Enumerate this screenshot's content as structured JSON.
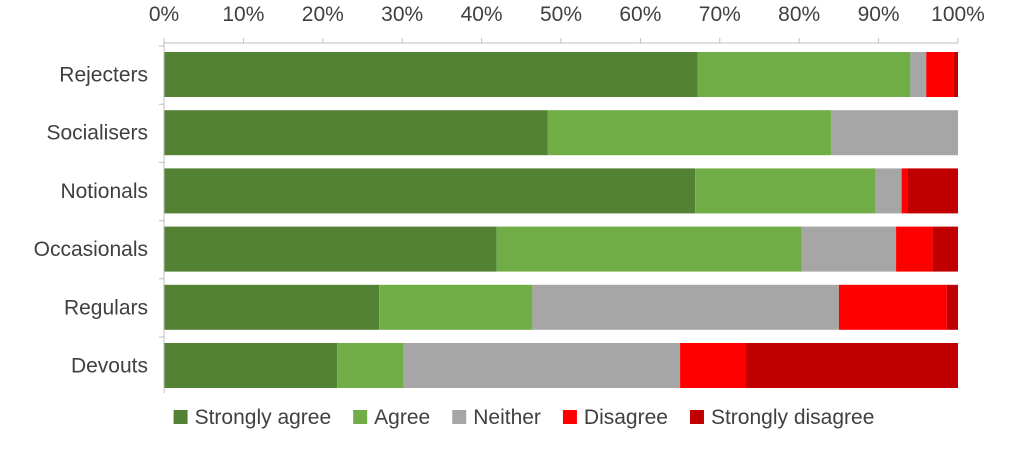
{
  "chart_data": {
    "type": "bar",
    "orientation": "horizontal",
    "stacked": "percent",
    "categories": [
      "Rejecters",
      "Socialisers",
      "Notionals",
      "Occasionals",
      "Regulars",
      "Devouts"
    ],
    "series": [
      {
        "name": "Strongly agree",
        "color": "#548235",
        "values": [
          67.2,
          48.3,
          66.9,
          41.9,
          27.1,
          21.8
        ]
      },
      {
        "name": "Agree",
        "color": "#70ad47",
        "values": [
          26.8,
          35.7,
          22.7,
          38.4,
          19.3,
          8.4
        ]
      },
      {
        "name": "Neither",
        "color": "#a6a6a6",
        "values": [
          2.0,
          16.0,
          3.3,
          11.9,
          38.6,
          34.8
        ]
      },
      {
        "name": "Disagree",
        "color": "#ff0000",
        "values": [
          3.4,
          0.0,
          0.8,
          4.6,
          13.6,
          8.3
        ]
      },
      {
        "name": "Strongly disagree",
        "color": "#c00000",
        "values": [
          0.6,
          0.0,
          6.3,
          3.2,
          1.4,
          26.7
        ]
      }
    ],
    "xlim": [
      0,
      100
    ],
    "x_ticks": [
      "0%",
      "10%",
      "20%",
      "30%",
      "40%",
      "50%",
      "60%",
      "70%",
      "80%",
      "90%",
      "100%"
    ],
    "x_axis_position": "top",
    "grid": false,
    "legend_position": "bottom"
  }
}
